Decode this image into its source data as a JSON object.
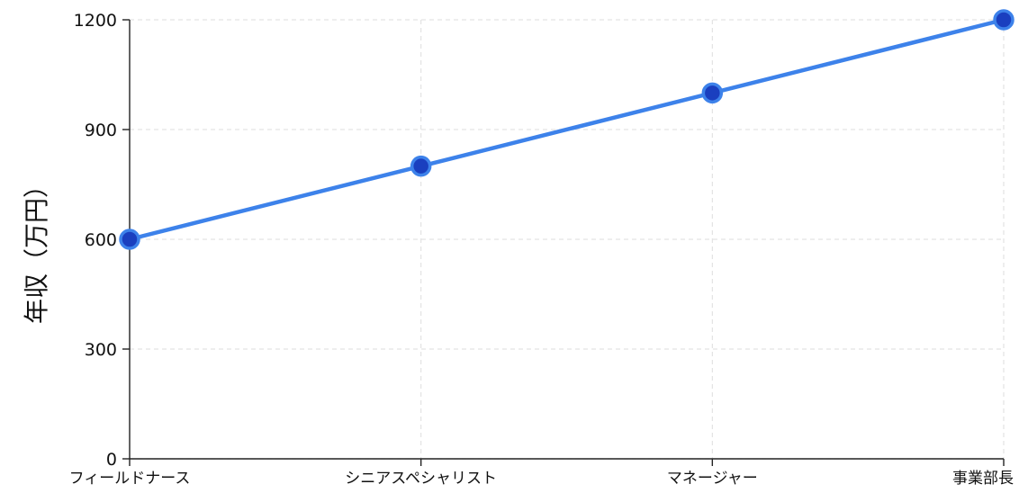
{
  "chart_data": {
    "type": "line",
    "title": "",
    "xlabel": "",
    "ylabel": "年収（万円）",
    "categories": [
      "フィールドナース",
      "シニアスペシャリスト",
      "マネージャー",
      "事業部長"
    ],
    "series": [
      {
        "values": [
          600,
          800,
          1000,
          1200
        ]
      }
    ],
    "ylim": [
      0,
      1200
    ],
    "yticks": [
      0,
      300,
      600,
      900,
      1200
    ],
    "grid": true,
    "colors": {
      "line": "#3d82ea",
      "marker_fill": "#1a3fbf",
      "marker_stroke": "#3d82ea"
    }
  }
}
